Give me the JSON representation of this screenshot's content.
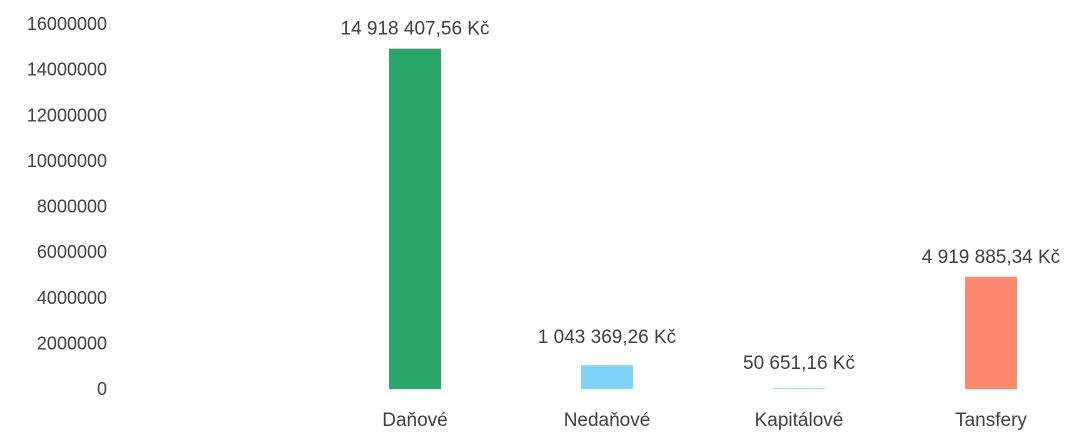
{
  "chart_data": {
    "type": "bar",
    "title": "",
    "xlabel": "",
    "ylabel": "",
    "ylim": [
      0,
      16000000
    ],
    "yticks": [
      0,
      2000000,
      4000000,
      6000000,
      8000000,
      10000000,
      12000000,
      14000000,
      16000000
    ],
    "ytick_labels": [
      "0",
      "2000000",
      "4000000",
      "6000000",
      "8000000",
      "10000000",
      "12000000",
      "14000000",
      "16000000"
    ],
    "grid": false,
    "legend": "none",
    "categories": [
      "Daňové",
      "Nedaňové",
      "Kapitálové",
      "Tansfery"
    ],
    "values": [
      14918407.56,
      1043369.26,
      50651.16,
      4919885.34
    ],
    "data_labels": [
      "14 918 407,56 Kč",
      "1 043 369,26 Kč",
      "50 651,16 Kč",
      "4 919 885,34 Kč"
    ],
    "colors": [
      "#2aa86b",
      "#7fd4f5",
      "#a8e6c0",
      "#fd8a6e"
    ]
  }
}
